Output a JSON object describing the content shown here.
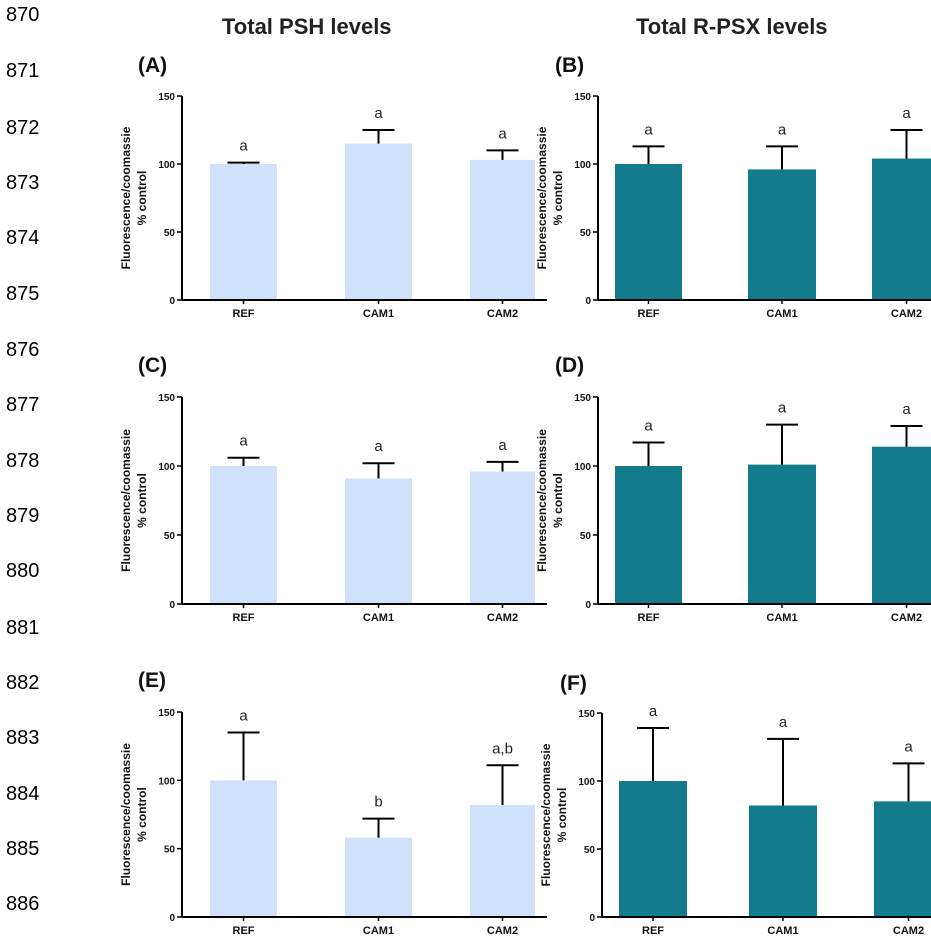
{
  "line_numbers": [
    "870",
    "871",
    "872",
    "873",
    "874",
    "875",
    "876",
    "877",
    "878",
    "879",
    "880",
    "881",
    "882",
    "883",
    "884",
    "885",
    "886"
  ],
  "column_titles": {
    "left": "Total PSH levels",
    "right": "Total R-PSX levels"
  },
  "colors": {
    "psh_bar": "#cfe1fb",
    "rpsx_bar": "#127c8c",
    "axis": "#000000"
  },
  "chart_data": [
    {
      "panel": "(A)",
      "type": "bar",
      "ylabel_line1": "Fluorescence/coomassie",
      "ylabel_line2": "% control",
      "categories": [
        "REF",
        "CAM1",
        "CAM2"
      ],
      "values": [
        100,
        115,
        103
      ],
      "error": [
        1,
        10,
        7
      ],
      "labels": [
        "a",
        "a",
        "a"
      ],
      "ylim": [
        0,
        150
      ],
      "yticks": [
        "0",
        "50",
        "100",
        "150"
      ],
      "color": "#cfe1fb"
    },
    {
      "panel": "(B)",
      "type": "bar",
      "ylabel_line1": "Fluorescence/coomassie",
      "ylabel_line2": "% control",
      "categories": [
        "REF",
        "CAM1",
        "CAM2"
      ],
      "values": [
        100,
        96,
        104
      ],
      "error": [
        13,
        17,
        21
      ],
      "labels": [
        "a",
        "a",
        "a"
      ],
      "ylim": [
        0,
        150
      ],
      "yticks": [
        "0",
        "50",
        "100",
        "150"
      ],
      "color": "#127c8c"
    },
    {
      "panel": "(C)",
      "type": "bar",
      "ylabel_line1": "Fluorescence/coomassie",
      "ylabel_line2": "% control",
      "categories": [
        "REF",
        "CAM1",
        "CAM2"
      ],
      "values": [
        100,
        91,
        96
      ],
      "error": [
        6,
        11,
        7
      ],
      "labels": [
        "a",
        "a",
        "a"
      ],
      "ylim": [
        0,
        150
      ],
      "yticks": [
        "0",
        "50",
        "100",
        "150"
      ],
      "color": "#cfe1fb"
    },
    {
      "panel": "(D)",
      "type": "bar",
      "ylabel_line1": "Fluorescence/coomassie",
      "ylabel_line2": "% control",
      "categories": [
        "REF",
        "CAM1",
        "CAM2"
      ],
      "values": [
        100,
        101,
        114
      ],
      "error": [
        17,
        29,
        15
      ],
      "labels": [
        "a",
        "a",
        "a"
      ],
      "ylim": [
        0,
        150
      ],
      "yticks": [
        "0",
        "50",
        "100",
        "150"
      ],
      "color": "#127c8c"
    },
    {
      "panel": "(E)",
      "type": "bar",
      "ylabel_line1": "Fluorescence/coomassie",
      "ylabel_line2": "% control",
      "categories": [
        "REF",
        "CAM1",
        "CAM2"
      ],
      "values": [
        100,
        58,
        82
      ],
      "error": [
        35,
        14,
        29
      ],
      "labels": [
        "a",
        "b",
        "a,b"
      ],
      "ylim": [
        0,
        150
      ],
      "yticks": [
        "0",
        "50",
        "100",
        "150"
      ],
      "color": "#cfe1fb"
    },
    {
      "panel": "(F)",
      "type": "bar",
      "ylabel_line1": "Fluorescence/coomassie",
      "ylabel_line2": "% control",
      "categories": [
        "REF",
        "CAM1",
        "CAM2"
      ],
      "values": [
        100,
        82,
        85
      ],
      "error": [
        39,
        49,
        28
      ],
      "labels": [
        "a",
        "a",
        "a"
      ],
      "ylim": [
        0,
        150
      ],
      "yticks": [
        "0",
        "50",
        "100",
        "150"
      ],
      "color": "#127c8c"
    }
  ]
}
